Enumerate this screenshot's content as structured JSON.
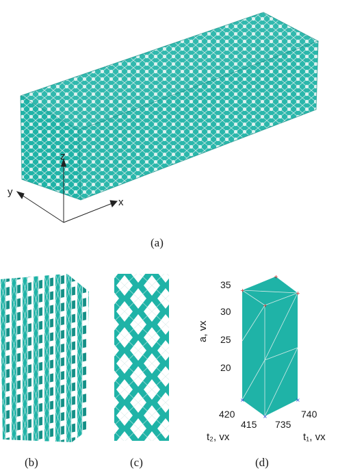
{
  "colors": {
    "mesh": "#1fb3a7",
    "mesh_dark": "#138f86",
    "edge": "#d9ecea",
    "axis": "#222222",
    "marker_red": "#d11a1a",
    "marker_blue": "#1a3ad1"
  },
  "panel_a": {
    "caption": "(a)",
    "axes": {
      "z": "z",
      "y": "y",
      "x": "x"
    }
  },
  "panel_b": {
    "caption": "(b)"
  },
  "panel_c": {
    "caption": "(c)"
  },
  "panel_d": {
    "caption": "(d)",
    "ylabel": "a, vx",
    "t2_label": "t₂, vx",
    "t1_label": "t₁, vx",
    "a_ticks": [
      "35",
      "30",
      "25",
      "20"
    ],
    "t2_ticks": [
      "420",
      "415"
    ],
    "t1_ticks": [
      "735",
      "740"
    ]
  }
}
